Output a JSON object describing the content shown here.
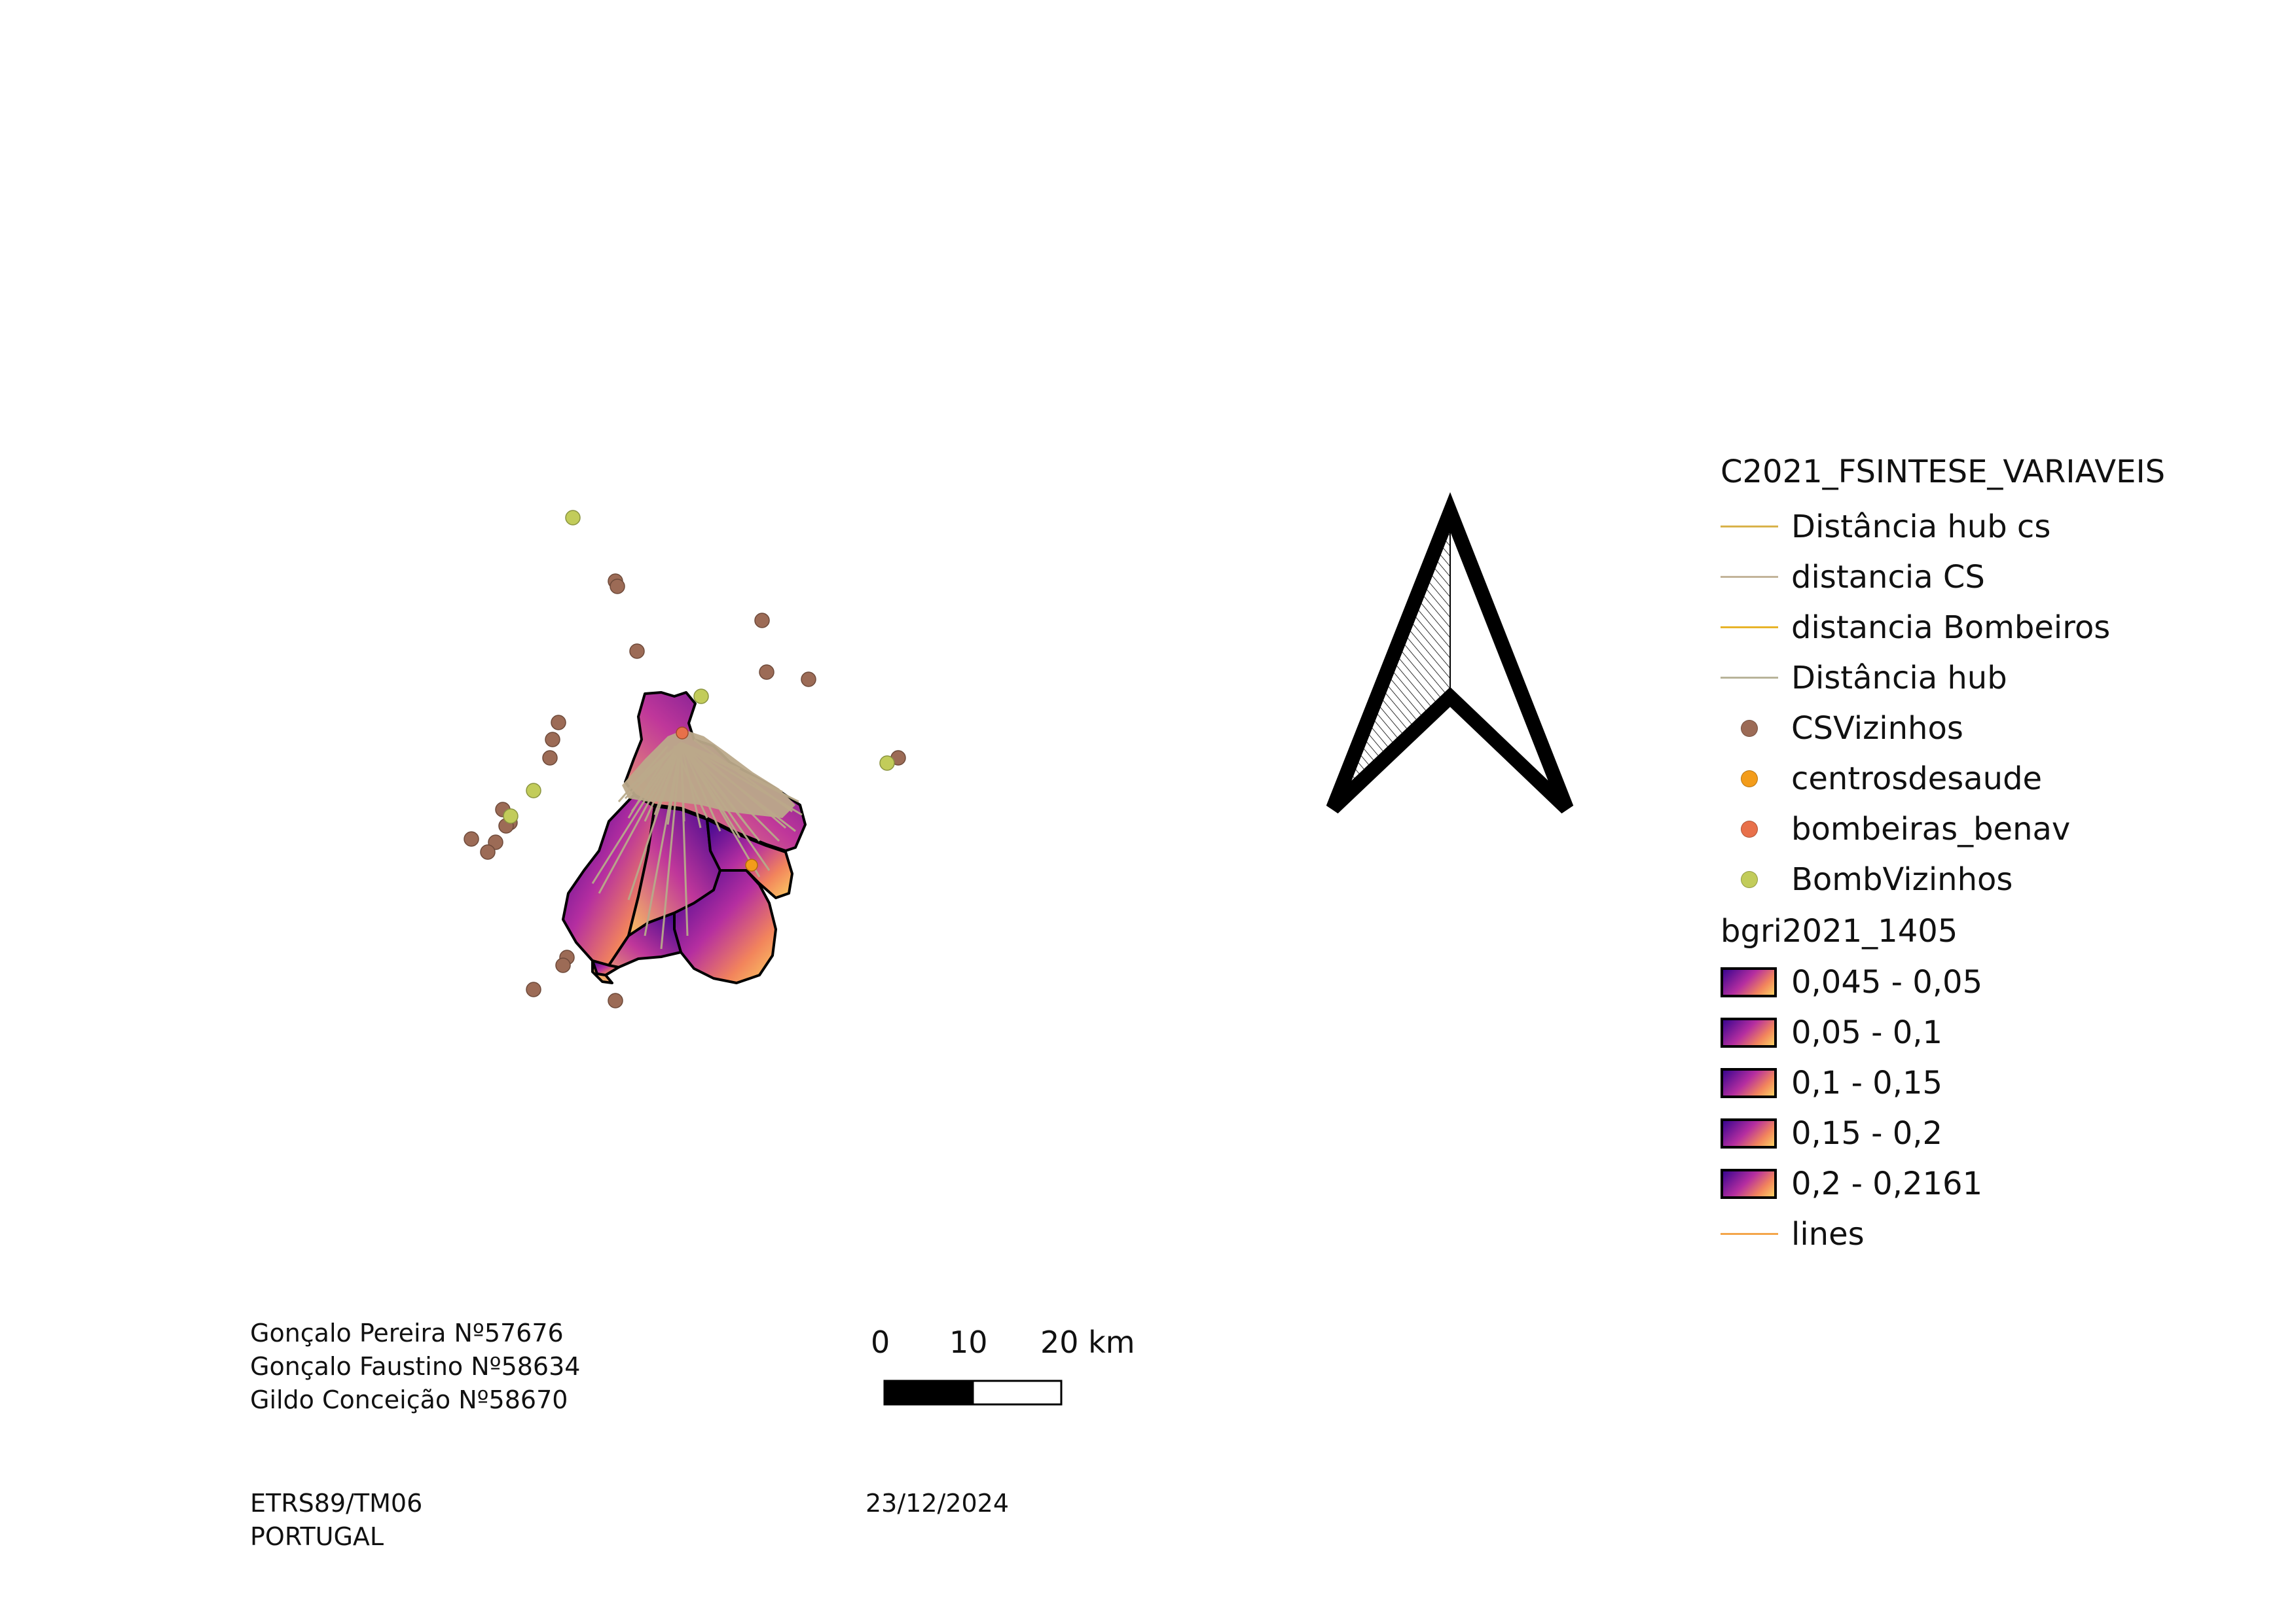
{
  "legend": {
    "group_title": "C2021_FSINTESE_VARIAVEIS",
    "layers": [
      {
        "label": "Distância hub cs",
        "symbol": "line",
        "color": "#d9b24a"
      },
      {
        "label": "distancia CS",
        "symbol": "line",
        "color": "#c2b49a"
      },
      {
        "label": "distancia Bombeiros",
        "symbol": "line",
        "color": "#e8b42a"
      },
      {
        "label": "Distância hub",
        "symbol": "line",
        "color": "#b8b49a"
      },
      {
        "label": "CSVizinhos",
        "symbol": "dot",
        "color": "#9c6b56"
      },
      {
        "label": "centrosdesaude",
        "symbol": "dot",
        "color": "#f39c1a"
      },
      {
        "label": "bombeiras_benav",
        "symbol": "dot",
        "color": "#e8704a"
      },
      {
        "label": "BombVizinhos",
        "symbol": "dot",
        "color": "#c2cc5a"
      }
    ],
    "group2_title": "bgri2021_1405",
    "classes": [
      {
        "label": "0,045 - 0,05"
      },
      {
        "label": "0,05 - 0,1"
      },
      {
        "label": "0,1 - 0,15"
      },
      {
        "label": "0,15 - 0,2"
      },
      {
        "label": "0,2 - 0,2161"
      }
    ],
    "extra": {
      "label": "lines",
      "symbol": "line",
      "color": "#f4a54a"
    }
  },
  "scale_bar": {
    "labels": [
      "0",
      "10",
      "20 km"
    ]
  },
  "authors": [
    "Gonçalo Pereira Nº57676",
    "Gonçalo Faustino Nº58634",
    "Gildo Conceição Nº58670"
  ],
  "crs": [
    "ETRS89/TM06",
    "PORTUGAL"
  ],
  "date": "23/12/2024",
  "north_arrow": {
    "icon": "north-arrow-icon"
  }
}
